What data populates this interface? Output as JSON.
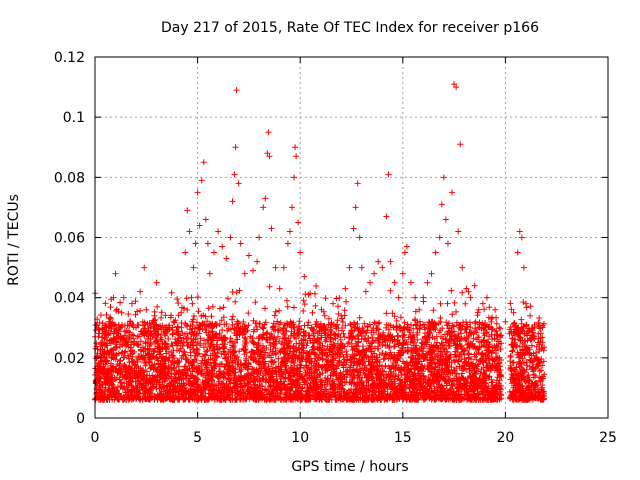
{
  "chart_data": {
    "type": "scatter",
    "title": "Day 217 of 2015, Rate Of TEC Index for receiver p166",
    "xlabel": "GPS time / hours",
    "ylabel": "ROTI / TECUs",
    "xlim": [
      0,
      25
    ],
    "ylim": [
      0,
      0.12
    ],
    "x_ticks": [
      0,
      5,
      10,
      15,
      20,
      25
    ],
    "y_ticks": [
      0,
      0.02,
      0.04,
      0.06,
      0.08,
      0.1,
      0.12
    ],
    "x_tick_labels": [
      "0",
      "5",
      "10",
      "15",
      "20",
      "25"
    ],
    "y_tick_labels": [
      "0",
      "0.02",
      "0.04",
      "0.06",
      "0.08",
      "0.1",
      "0.12"
    ],
    "grid": true,
    "marker": "+",
    "series_color": "#ff0000",
    "series": [
      {
        "values": [
          [
            0.1,
            0.012
          ],
          [
            0.2,
            0.018
          ],
          [
            0.3,
            0.025
          ],
          [
            0.4,
            0.015
          ],
          [
            0.5,
            0.03
          ],
          [
            0.6,
            0.022
          ],
          [
            0.7,
            0.033
          ],
          [
            0.8,
            0.02
          ],
          [
            0.9,
            0.04
          ],
          [
            1.0,
            0.048
          ],
          [
            1.1,
            0.028
          ],
          [
            1.2,
            0.018
          ],
          [
            1.3,
            0.035
          ],
          [
            1.4,
            0.04
          ],
          [
            1.5,
            0.025
          ],
          [
            1.6,
            0.016
          ],
          [
            1.7,
            0.032
          ],
          [
            1.8,
            0.038
          ],
          [
            1.9,
            0.022
          ],
          [
            2.0,
            0.03
          ],
          [
            2.2,
            0.042
          ],
          [
            2.4,
            0.05
          ],
          [
            2.5,
            0.036
          ],
          [
            2.7,
            0.028
          ],
          [
            2.9,
            0.034
          ],
          [
            3.0,
            0.045
          ],
          [
            3.2,
            0.026
          ],
          [
            3.4,
            0.03
          ],
          [
            3.6,
            0.02
          ],
          [
            3.8,
            0.028
          ],
          [
            4.0,
            0.024
          ],
          [
            4.2,
            0.035
          ],
          [
            4.4,
            0.055
          ],
          [
            4.5,
            0.069
          ],
          [
            4.6,
            0.062
          ],
          [
            4.7,
            0.04
          ],
          [
            4.8,
            0.05
          ],
          [
            4.9,
            0.058
          ],
          [
            5.0,
            0.075
          ],
          [
            5.1,
            0.064
          ],
          [
            5.2,
            0.079
          ],
          [
            5.3,
            0.085
          ],
          [
            5.4,
            0.066
          ],
          [
            5.5,
            0.058
          ],
          [
            5.6,
            0.048
          ],
          [
            5.8,
            0.055
          ],
          [
            6.0,
            0.062
          ],
          [
            6.2,
            0.057
          ],
          [
            6.4,
            0.053
          ],
          [
            6.6,
            0.06
          ],
          [
            6.7,
            0.072
          ],
          [
            6.8,
            0.081
          ],
          [
            6.85,
            0.09
          ],
          [
            6.9,
            0.109
          ],
          [
            7.0,
            0.078
          ],
          [
            7.1,
            0.058
          ],
          [
            7.3,
            0.048
          ],
          [
            7.5,
            0.054
          ],
          [
            7.7,
            0.049
          ],
          [
            7.9,
            0.052
          ],
          [
            8.0,
            0.06
          ],
          [
            8.2,
            0.07
          ],
          [
            8.3,
            0.073
          ],
          [
            8.4,
            0.088
          ],
          [
            8.45,
            0.095
          ],
          [
            8.5,
            0.087
          ],
          [
            8.6,
            0.063
          ],
          [
            8.8,
            0.05
          ],
          [
            9.0,
            0.043
          ],
          [
            9.2,
            0.05
          ],
          [
            9.4,
            0.058
          ],
          [
            9.5,
            0.062
          ],
          [
            9.6,
            0.07
          ],
          [
            9.7,
            0.08
          ],
          [
            9.75,
            0.09
          ],
          [
            9.8,
            0.087
          ],
          [
            9.9,
            0.065
          ],
          [
            10.0,
            0.055
          ],
          [
            10.2,
            0.047
          ],
          [
            10.4,
            0.041
          ],
          [
            10.6,
            0.035
          ],
          [
            10.8,
            0.032
          ],
          [
            11.0,
            0.03
          ],
          [
            11.2,
            0.034
          ],
          [
            11.4,
            0.033
          ],
          [
            11.6,
            0.038
          ],
          [
            11.8,
            0.031
          ],
          [
            12.0,
            0.034
          ],
          [
            12.2,
            0.043
          ],
          [
            12.4,
            0.05
          ],
          [
            12.6,
            0.063
          ],
          [
            12.7,
            0.07
          ],
          [
            12.8,
            0.078
          ],
          [
            12.9,
            0.06
          ],
          [
            13.0,
            0.05
          ],
          [
            13.2,
            0.042
          ],
          [
            13.4,
            0.045
          ],
          [
            13.6,
            0.048
          ],
          [
            13.8,
            0.052
          ],
          [
            14.0,
            0.05
          ],
          [
            14.2,
            0.067
          ],
          [
            14.3,
            0.081
          ],
          [
            14.4,
            0.052
          ],
          [
            14.6,
            0.045
          ],
          [
            14.8,
            0.04
          ],
          [
            15.0,
            0.048
          ],
          [
            15.1,
            0.055
          ],
          [
            15.2,
            0.057
          ],
          [
            15.4,
            0.045
          ],
          [
            15.6,
            0.04
          ],
          [
            15.8,
            0.036
          ],
          [
            16.0,
            0.04
          ],
          [
            16.2,
            0.045
          ],
          [
            16.4,
            0.048
          ],
          [
            16.6,
            0.055
          ],
          [
            16.8,
            0.06
          ],
          [
            16.9,
            0.071
          ],
          [
            17.0,
            0.08
          ],
          [
            17.1,
            0.066
          ],
          [
            17.2,
            0.058
          ],
          [
            17.4,
            0.075
          ],
          [
            17.5,
            0.111
          ],
          [
            17.6,
            0.11
          ],
          [
            17.7,
            0.062
          ],
          [
            17.8,
            0.091
          ],
          [
            17.9,
            0.05
          ],
          [
            18.1,
            0.043
          ],
          [
            18.3,
            0.04
          ],
          [
            18.5,
            0.044
          ],
          [
            18.7,
            0.036
          ],
          [
            18.9,
            0.038
          ],
          [
            19.1,
            0.04
          ],
          [
            19.3,
            0.033
          ],
          [
            19.5,
            0.036
          ],
          [
            19.7,
            0.03
          ],
          [
            20.0,
            0.032
          ],
          [
            20.2,
            0.028
          ],
          [
            20.4,
            0.035
          ],
          [
            20.6,
            0.055
          ],
          [
            20.7,
            0.062
          ],
          [
            20.8,
            0.06
          ],
          [
            20.9,
            0.05
          ],
          [
            21.0,
            0.038
          ],
          [
            21.2,
            0.034
          ],
          [
            21.4,
            0.03
          ],
          [
            21.6,
            0.028
          ],
          [
            21.7,
            0.03
          ],
          [
            21.8,
            0.025
          ]
        ]
      }
    ]
  }
}
